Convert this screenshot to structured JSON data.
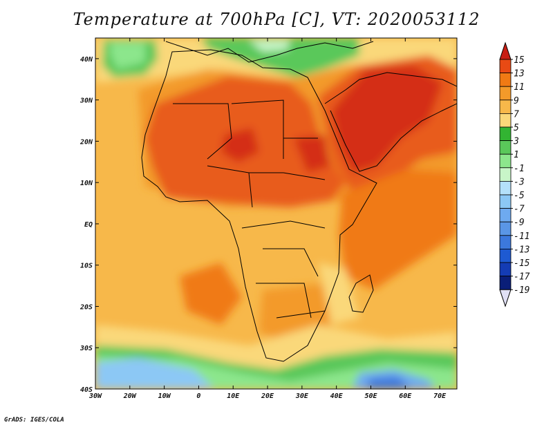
{
  "title": "Temperature at 700hPa [C], VT: 2020053112",
  "credit": "GrADS: IGES/COLA",
  "axes": {
    "lon_ticks": [
      "30W",
      "20W",
      "10W",
      "0",
      "10E",
      "20E",
      "30E",
      "40E",
      "50E",
      "60E",
      "70E"
    ],
    "lat_ticks": [
      "40S",
      "30S",
      "20S",
      "10S",
      "EQ",
      "10N",
      "20N",
      "30N",
      "40N"
    ]
  },
  "colorbar": {
    "labels": [
      "15",
      "13",
      "11",
      "9",
      "7",
      "5",
      "3",
      "1",
      "-1",
      "-3",
      "-5",
      "-7",
      "-9",
      "-11",
      "-13",
      "-15",
      "-17",
      "-19"
    ],
    "colors": [
      "#c81e14",
      "#e84a14",
      "#f07a14",
      "#f39a2a",
      "#f7b84a",
      "#fad87a",
      "#32b432",
      "#5ac85a",
      "#8ce68c",
      "#c8f5c8",
      "#b4e1fa",
      "#8cc8f5",
      "#6eaaf0",
      "#5a96e6",
      "#3c78dc",
      "#1e5ad2",
      "#143cb4",
      "#0a1e78"
    ]
  },
  "map": {
    "region": "Africa and Arabia",
    "field": "700hPa temperature",
    "colors": {
      "ocean_warm": "#f7b84a",
      "land_hot": "#e85c1a",
      "land_hottest": "#d42e14",
      "cool_green": "#5ac85a",
      "cold_blue": "#6eaaf0",
      "coast": "#000000"
    }
  }
}
